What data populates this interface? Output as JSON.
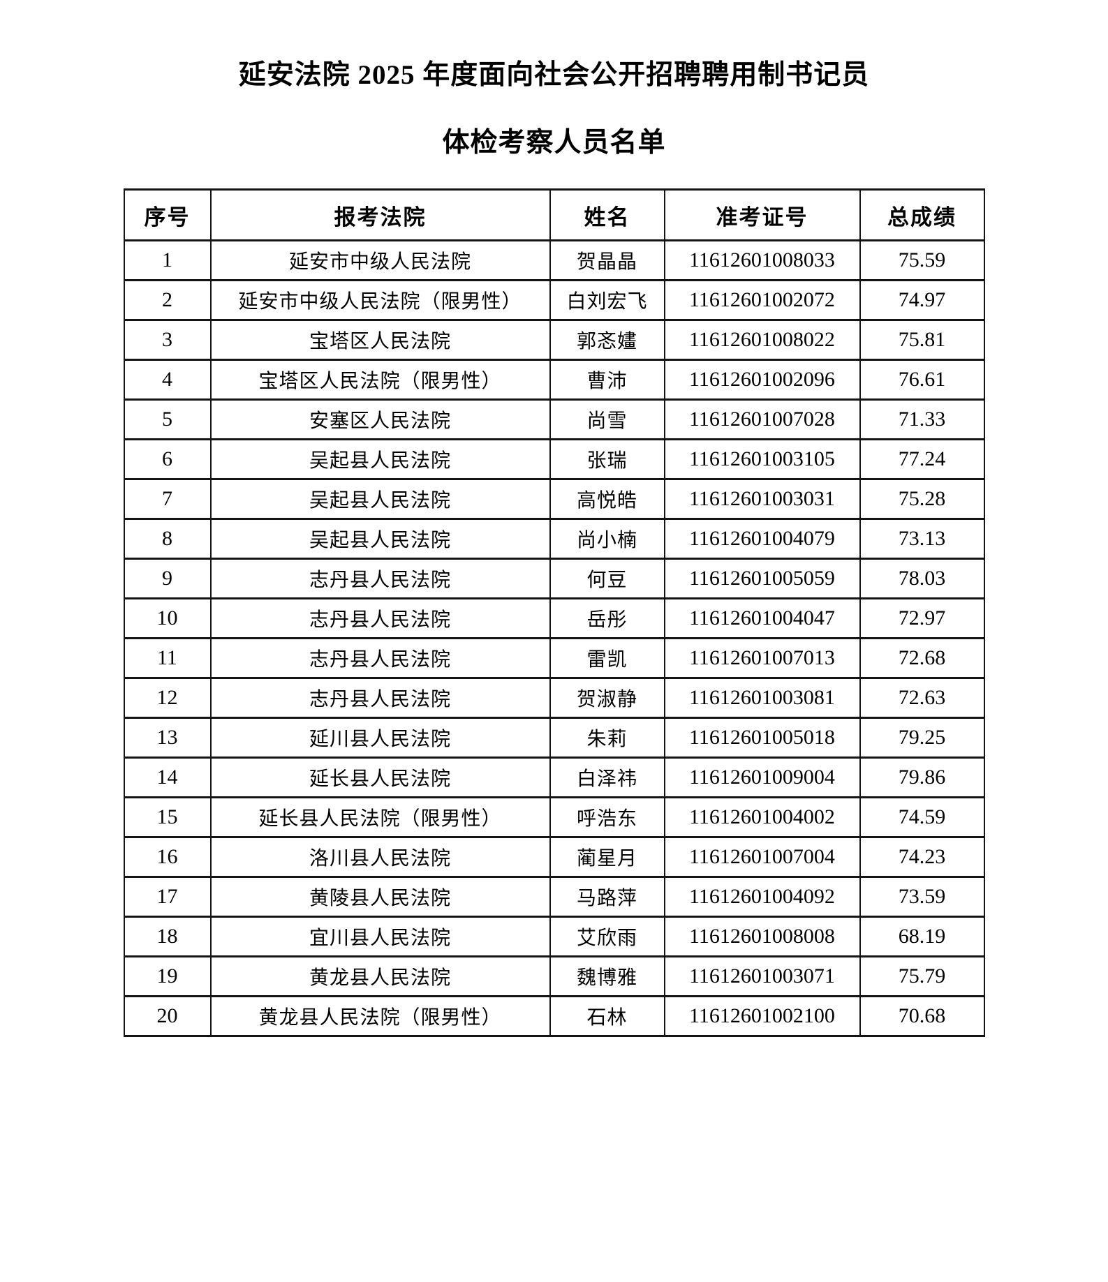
{
  "page": {
    "title_line1": "延安法院 2025 年度面向社会公开招聘聘用制书记员",
    "title_line2": "体检考察人员名单"
  },
  "table": {
    "columns": [
      "序号",
      "报考法院",
      "姓名",
      "准考证号",
      "总成绩"
    ],
    "rows": [
      {
        "no": "1",
        "court": "延安市中级人民法院",
        "name": "贺晶晶",
        "ticket": "11612601008033",
        "score": "75.59"
      },
      {
        "no": "2",
        "court": "延安市中级人民法院（限男性）",
        "name": "白刘宏飞",
        "ticket": "11612601002072",
        "score": "74.97"
      },
      {
        "no": "3",
        "court": "宝塔区人民法院",
        "name": "郭忞嫿",
        "ticket": "11612601008022",
        "score": "75.81"
      },
      {
        "no": "4",
        "court": "宝塔区人民法院（限男性）",
        "name": "曹沛",
        "ticket": "11612601002096",
        "score": "76.61"
      },
      {
        "no": "5",
        "court": "安塞区人民法院",
        "name": "尚雪",
        "ticket": "11612601007028",
        "score": "71.33"
      },
      {
        "no": "6",
        "court": "吴起县人民法院",
        "name": "张瑞",
        "ticket": "11612601003105",
        "score": "77.24"
      },
      {
        "no": "7",
        "court": "吴起县人民法院",
        "name": "高悦皓",
        "ticket": "11612601003031",
        "score": "75.28"
      },
      {
        "no": "8",
        "court": "吴起县人民法院",
        "name": "尚小楠",
        "ticket": "11612601004079",
        "score": "73.13"
      },
      {
        "no": "9",
        "court": "志丹县人民法院",
        "name": "何豆",
        "ticket": "11612601005059",
        "score": "78.03"
      },
      {
        "no": "10",
        "court": "志丹县人民法院",
        "name": "岳彤",
        "ticket": "11612601004047",
        "score": "72.97"
      },
      {
        "no": "11",
        "court": "志丹县人民法院",
        "name": "雷凯",
        "ticket": "11612601007013",
        "score": "72.68"
      },
      {
        "no": "12",
        "court": "志丹县人民法院",
        "name": "贺淑静",
        "ticket": "11612601003081",
        "score": "72.63"
      },
      {
        "no": "13",
        "court": "延川县人民法院",
        "name": "朱莉",
        "ticket": "11612601005018",
        "score": "79.25"
      },
      {
        "no": "14",
        "court": "延长县人民法院",
        "name": "白泽祎",
        "ticket": "11612601009004",
        "score": "79.86"
      },
      {
        "no": "15",
        "court": "延长县人民法院（限男性）",
        "name": "呼浩东",
        "ticket": "11612601004002",
        "score": "74.59"
      },
      {
        "no": "16",
        "court": "洛川县人民法院",
        "name": "蔺星月",
        "ticket": "11612601007004",
        "score": "74.23"
      },
      {
        "no": "17",
        "court": "黄陵县人民法院",
        "name": "马路萍",
        "ticket": "11612601004092",
        "score": "73.59"
      },
      {
        "no": "18",
        "court": "宜川县人民法院",
        "name": "艾欣雨",
        "ticket": "11612601008008",
        "score": "68.19"
      },
      {
        "no": "19",
        "court": "黄龙县人民法院",
        "name": "魏博雅",
        "ticket": "11612601003071",
        "score": "75.79"
      },
      {
        "no": "20",
        "court": "黄龙县人民法院（限男性）",
        "name": "石林",
        "ticket": "11612601002100",
        "score": "70.68"
      }
    ]
  }
}
